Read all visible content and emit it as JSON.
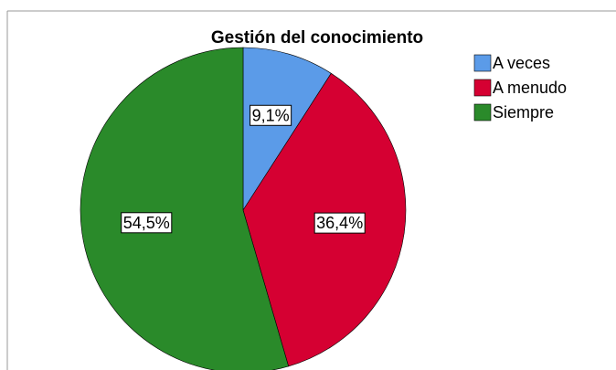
{
  "chart_data": {
    "type": "pie",
    "title": "Gestión del conocimiento",
    "categories": [
      "A veces",
      "A menudo",
      "Siempre"
    ],
    "values": [
      9.1,
      36.4,
      54.5
    ],
    "value_labels": [
      "9,1%",
      "36,4%",
      "54,5%"
    ],
    "colors": [
      "#5b9be8",
      "#d50032",
      "#2a8a2a"
    ],
    "legend": "top-right"
  }
}
